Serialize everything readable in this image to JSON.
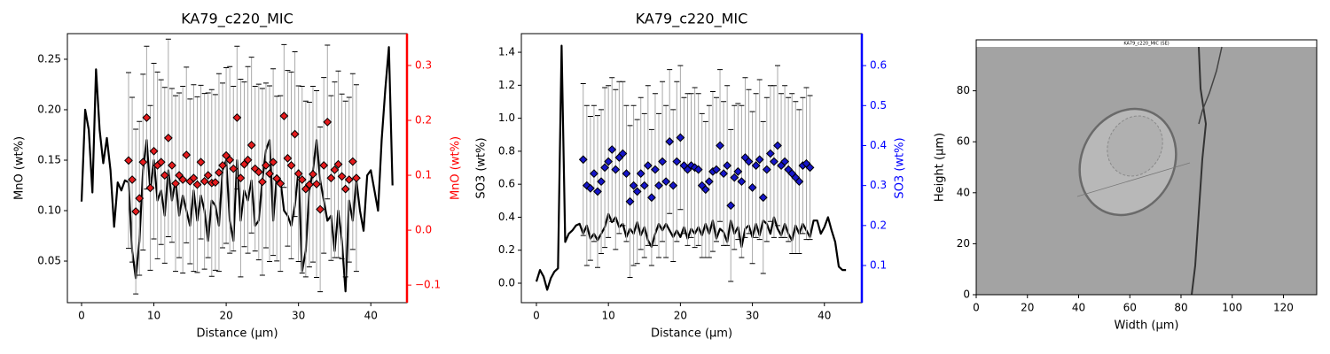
{
  "chart_data": [
    {
      "type": "line",
      "title": "KA79_c220_MIC",
      "xlabel": "Distance (µm)",
      "ylabel": "MnO (wt%)",
      "y2label": "MnO (wt%)",
      "y2color": "red",
      "xlim": [
        -1.96,
        45.0
      ],
      "ylim": [
        0.0088,
        0.2754
      ],
      "y2lim": [
        -0.132,
        0.358
      ],
      "xticks": [
        0,
        10,
        20,
        30,
        40
      ],
      "yticks": [
        0.05,
        {
          "value": 0.1,
          "label": "0.10"
        },
        0.15,
        {
          "value": 0.2,
          "label": "0.20"
        },
        0.25
      ],
      "y2ticks": [
        {
          "value": -0.1,
          "label": "−0.1"
        },
        {
          "value": 0,
          "label": "0.0"
        },
        0.1,
        0.2,
        0.3
      ],
      "series": [
        {
          "type": "line",
          "color": "#000000",
          "x": [
            0,
            0.5,
            1,
            1.5,
            2,
            2.5,
            3,
            3.5,
            4,
            4.5,
            5,
            5.5,
            6,
            6.5,
            7,
            7.5,
            8,
            8.5,
            9,
            9.5,
            10,
            10.5,
            11,
            11.5,
            12,
            12.5,
            13,
            13.5,
            14,
            14.5,
            15,
            15.5,
            16,
            16.5,
            17,
            17.5,
            18,
            18.5,
            19,
            19.5,
            20,
            20.5,
            21,
            21.5,
            22,
            22.5,
            23,
            23.5,
            24,
            24.5,
            25,
            25.5,
            26,
            26.5,
            27,
            27.5,
            28,
            28.5,
            29,
            29.5,
            30,
            30.5,
            31,
            31.5,
            32,
            32.5,
            33,
            33.5,
            34,
            34.5,
            35,
            35.5,
            36,
            36.5,
            37,
            37.5,
            38,
            38.5,
            39,
            39.5,
            40,
            40.5,
            41,
            41.5,
            42,
            42.5,
            43
          ],
          "values": [
            0.109,
            0.2,
            0.18,
            0.118,
            0.24,
            0.18,
            0.147,
            0.172,
            0.14,
            0.084,
            0.128,
            0.12,
            0.13,
            0.128,
            0.06,
            0.033,
            0.07,
            0.14,
            0.17,
            0.12,
            0.15,
            0.11,
            0.12,
            0.095,
            0.14,
            0.11,
            0.13,
            0.095,
            0.115,
            0.1,
            0.085,
            0.12,
            0.09,
            0.115,
            0.1,
            0.07,
            0.11,
            0.105,
            0.085,
            0.14,
            0.15,
            0.09,
            0.07,
            0.15,
            0.09,
            0.12,
            0.11,
            0.13,
            0.085,
            0.09,
            0.13,
            0.16,
            0.17,
            0.09,
            0.135,
            0.13,
            0.1,
            0.095,
            0.085,
            0.105,
            0.14,
            0.04,
            0.06,
            0.12,
            0.14,
            0.17,
            0.13,
            0.11,
            0.09,
            0.095,
            0.06,
            0.1,
            0.07,
            0.02,
            0.11,
            0.09,
            0.13,
            0.1,
            0.08,
            0.135,
            0.14,
            0.12,
            0.1,
            0.17,
            0.22,
            0.262,
            0.125
          ]
        },
        {
          "type": "scatter",
          "color": "#e41a1c",
          "axis": "y2",
          "x": [
            6.5,
            7,
            7.5,
            8,
            8.5,
            9,
            9.5,
            10,
            10.5,
            11,
            11.5,
            12,
            12.5,
            13,
            13.5,
            14,
            14.5,
            15,
            15.5,
            16,
            16.5,
            17,
            17.5,
            18,
            18.5,
            19,
            19.5,
            20,
            20.5,
            21,
            21.5,
            22,
            22.5,
            23,
            23.5,
            24,
            24.5,
            25,
            25.5,
            26,
            26.5,
            27,
            27.5,
            28,
            28.5,
            29,
            29.5,
            30,
            30.5,
            31,
            31.5,
            32,
            32.5,
            33,
            33.5,
            34,
            34.5,
            35,
            35.5,
            36,
            36.5,
            37,
            37.5,
            38
          ],
          "values": [
            0.127,
            0.092,
            0.034,
            0.058,
            0.124,
            0.205,
            0.077,
            0.144,
            0.118,
            0.124,
            0.1,
            0.168,
            0.118,
            0.085,
            0.1,
            0.092,
            0.137,
            0.089,
            0.095,
            0.083,
            0.124,
            0.089,
            0.1,
            0.086,
            0.087,
            0.105,
            0.118,
            0.136,
            0.128,
            0.112,
            0.205,
            0.095,
            0.12,
            0.128,
            0.155,
            0.112,
            0.106,
            0.088,
            0.118,
            0.103,
            0.124,
            0.094,
            0.085,
            0.208,
            0.131,
            0.118,
            0.175,
            0.103,
            0.092,
            0.075,
            0.083,
            0.102,
            0.084,
            0.038,
            0.118,
            0.197,
            0.095,
            0.11,
            0.12,
            0.098,
            0.075,
            0.092,
            0.125,
            0.095
          ],
          "errors": [
            0.16,
            0.15,
            0.15,
            0.14,
            0.16,
            0.13,
            0.15,
            0.16,
            0.17,
            0.15,
            0.16,
            0.18,
            0.14,
            0.16,
            0.15,
            0.17,
            0.16,
            0.15,
            0.17,
            0.16,
            0.14,
            0.16,
            0.15,
            0.17,
            0.16,
            0.18,
            0.15,
            0.16,
            0.17,
            0.15,
            0.13,
            0.18,
            0.15,
            0.17,
            0.16,
            0.15,
            0.16,
            0.17,
            0.15,
            0.16,
            0.17,
            0.15,
            0.16,
            0.13,
            0.16,
            0.17,
            0.15,
            0.16,
            0.17,
            0.16,
            0.15,
            0.16,
            0.17,
            0.15,
            0.16,
            0.14,
            0.15,
            0.16,
            0.17,
            0.15,
            0.16,
            0.15,
            0.16,
            0.17
          ]
        }
      ]
    },
    {
      "type": "line",
      "title": "KA79_c220_MIC",
      "xlabel": "Distance (µm)",
      "ylabel": "SO3 (wt%)",
      "y2label": "SO3 (wt%)",
      "y2color": "blue",
      "xlim": [
        -2.09,
        45.2
      ],
      "ylim": [
        -0.118,
        1.513
      ],
      "y2lim": [
        0.007,
        0.68
      ],
      "xticks": [
        0,
        10,
        20,
        30,
        40
      ],
      "yticks": [
        {
          "value": 0,
          "label": "0.0"
        },
        0.2,
        0.4,
        0.6,
        0.8,
        {
          "value": 1,
          "label": "1.0"
        },
        1.2,
        1.4
      ],
      "y2ticks": [
        0.1,
        0.2,
        0.3,
        0.4,
        0.5,
        0.6
      ],
      "series": [
        {
          "type": "line",
          "color": "#000000",
          "x": [
            0,
            0.5,
            1,
            1.5,
            2,
            2.5,
            3,
            3.5,
            4,
            4.5,
            5,
            5.5,
            6,
            6.5,
            7,
            7.5,
            8,
            8.5,
            9,
            9.5,
            10,
            10.5,
            11,
            11.5,
            12,
            12.5,
            13,
            13.5,
            14,
            14.5,
            15,
            15.5,
            16,
            16.5,
            17,
            17.5,
            18,
            18.5,
            19,
            19.5,
            20,
            20.5,
            21,
            21.5,
            22,
            22.5,
            23,
            23.5,
            24,
            24.5,
            25,
            25.5,
            26,
            26.5,
            27,
            27.5,
            28,
            28.5,
            29,
            29.5,
            30,
            30.5,
            31,
            31.5,
            32,
            32.5,
            33,
            33.5,
            34,
            34.5,
            35,
            35.5,
            36,
            36.5,
            37,
            37.5,
            38,
            38.5,
            39,
            39.5,
            40,
            40.5,
            41,
            41.5,
            42,
            42.5,
            43
          ],
          "values": [
            0.01,
            0.08,
            0.04,
            -0.04,
            0.03,
            0.07,
            0.09,
            1.44,
            0.25,
            0.3,
            0.32,
            0.35,
            0.36,
            0.3,
            0.35,
            0.27,
            0.3,
            0.26,
            0.3,
            0.34,
            0.42,
            0.37,
            0.4,
            0.34,
            0.36,
            0.28,
            0.33,
            0.3,
            0.37,
            0.29,
            0.34,
            0.26,
            0.22,
            0.3,
            0.36,
            0.32,
            0.36,
            0.32,
            0.28,
            0.32,
            0.28,
            0.34,
            0.27,
            0.33,
            0.3,
            0.34,
            0.29,
            0.36,
            0.3,
            0.38,
            0.27,
            0.33,
            0.31,
            0.25,
            0.38,
            0.3,
            0.34,
            0.22,
            0.33,
            0.35,
            0.28,
            0.36,
            0.29,
            0.38,
            0.36,
            0.3,
            0.4,
            0.33,
            0.29,
            0.36,
            0.3,
            0.26,
            0.35,
            0.3,
            0.36,
            0.32,
            0.28,
            0.38,
            0.38,
            0.3,
            0.34,
            0.4,
            0.32,
            0.25,
            0.1,
            0.08,
            0.08
          ]
        },
        {
          "type": "scatter",
          "color": "#1515c8",
          "axis": "y2",
          "x": [
            6.5,
            7,
            7.5,
            8,
            8.5,
            9,
            9.5,
            10,
            10.5,
            11,
            11.5,
            12,
            12.5,
            13,
            13.5,
            14,
            14.5,
            15,
            15.5,
            16,
            16.5,
            17,
            17.5,
            18,
            18.5,
            19,
            19.5,
            20,
            20.5,
            21,
            21.5,
            22,
            22.5,
            23,
            23.5,
            24,
            24.5,
            25,
            25.5,
            26,
            26.5,
            27,
            27.5,
            28,
            28.5,
            29,
            29.5,
            30,
            30.5,
            31,
            31.5,
            32,
            32.5,
            33,
            33.5,
            34,
            34.5,
            35,
            35.5,
            36,
            36.5,
            37,
            37.5,
            38
          ],
          "values": [
            0.365,
            0.3,
            0.293,
            0.33,
            0.285,
            0.31,
            0.345,
            0.36,
            0.39,
            0.34,
            0.37,
            0.38,
            0.33,
            0.26,
            0.3,
            0.285,
            0.33,
            0.3,
            0.35,
            0.27,
            0.34,
            0.3,
            0.36,
            0.31,
            0.41,
            0.3,
            0.36,
            0.42,
            0.35,
            0.34,
            0.35,
            0.345,
            0.34,
            0.3,
            0.29,
            0.31,
            0.335,
            0.34,
            0.4,
            0.33,
            0.35,
            0.25,
            0.32,
            0.335,
            0.31,
            0.37,
            0.36,
            0.295,
            0.35,
            0.365,
            0.27,
            0.34,
            0.38,
            0.36,
            0.4,
            0.35,
            0.36,
            0.34,
            0.33,
            0.32,
            0.31,
            0.35,
            0.355,
            0.345
          ],
          "errors": [
            0.19,
            0.2,
            0.18,
            0.17,
            0.19,
            0.18,
            0.2,
            0.19,
            0.18,
            0.2,
            0.19,
            0.18,
            0.17,
            0.19,
            0.2,
            0.18,
            0.19,
            0.18,
            0.2,
            0.17,
            0.19,
            0.18,
            0.2,
            0.19,
            0.18,
            0.19,
            0.2,
            0.18,
            0.17,
            0.19,
            0.18,
            0.2,
            0.19,
            0.18,
            0.17,
            0.19,
            0.2,
            0.18,
            0.19,
            0.18,
            0.2,
            0.19,
            0.18,
            0.17,
            0.19,
            0.2,
            0.18,
            0.19,
            0.18,
            0.2,
            0.19,
            0.18,
            0.17,
            0.19,
            0.2,
            0.18,
            0.19,
            0.18,
            0.2,
            0.19,
            0.18,
            0.17,
            0.19,
            0.18
          ]
        }
      ]
    },
    {
      "type": "image",
      "title": "KA79_c220_MIC (SE)",
      "xlabel": "Width (µm)",
      "ylabel": "Height (µm)",
      "xlim": [
        0,
        133
      ],
      "ylim": [
        0,
        100
      ],
      "xticks": [
        0,
        20,
        40,
        60,
        80,
        100,
        120
      ],
      "yticks": [
        0,
        20,
        40,
        60,
        80
      ]
    }
  ]
}
